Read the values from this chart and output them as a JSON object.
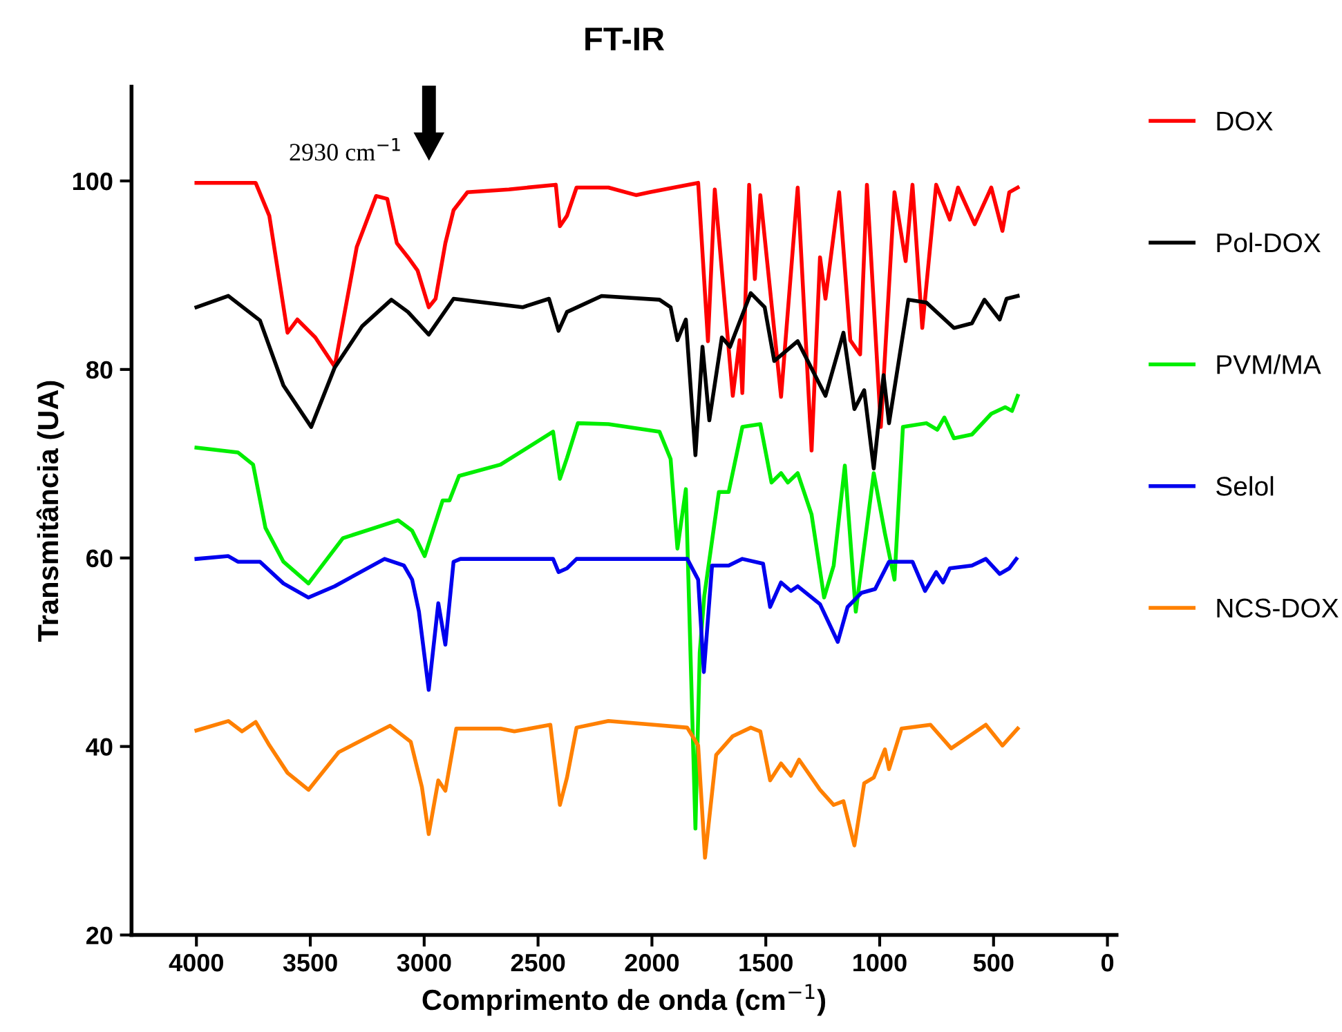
{
  "chart_data": {
    "type": "line",
    "title": "FT-IR",
    "xlabel": "Comprimento de onda (cm$^{−1}$)",
    "ylabel": "Transmitância (UA)",
    "annotations": [
      "2930 cm$^{−1}$"
    ],
    "xlim": [
      4285,
      -40
    ],
    "xticks": [
      4000,
      3500,
      3000,
      2500,
      2000,
      1500,
      1000,
      500,
      0
    ],
    "ylim": [
      20,
      110
    ],
    "yticks": [
      20,
      40,
      60,
      80,
      100
    ],
    "grid": false,
    "legend": "right",
    "marker": "none",
    "line_style": "solid",
    "series": [
      {
        "name": "DOX",
        "color": "#ff0000",
        "x": [
          4000,
          3740,
          3680,
          3600,
          3557,
          3478,
          3393,
          3296,
          3211,
          3162,
          3120,
          3071,
          3029,
          2980,
          2950,
          2907,
          2871,
          2810,
          2628,
          2422,
          2404,
          2373,
          2331,
          2191,
          2070,
          2010,
          1797,
          1754,
          1724,
          1645,
          1615,
          1603,
          1573,
          1548,
          1524,
          1433,
          1360,
          1299,
          1262,
          1238,
          1178,
          1129,
          1086,
          1056,
          995,
          935,
          886,
          856,
          813,
          752,
          692,
          656,
          583,
          510,
          461,
          431,
          394
        ],
        "values": [
          99.8,
          99.8,
          96.3,
          83.9,
          85.3,
          83.4,
          80.3,
          93,
          98.4,
          98.1,
          93.4,
          91.9,
          90.5,
          86.6,
          87.5,
          93.4,
          96.9,
          98.8,
          99.1,
          99.6,
          95.2,
          96.3,
          99.3,
          99.3,
          98.5,
          98.8,
          99.8,
          83,
          99.1,
          77.2,
          83.1,
          77.5,
          99.6,
          89.6,
          98.5,
          77.1,
          99.3,
          71.4,
          91.9,
          87.5,
          98.8,
          83.1,
          81.6,
          99.6,
          73.9,
          98.8,
          91.5,
          99.6,
          84.4,
          99.6,
          95.9,
          99.3,
          95.4,
          99.3,
          94.7,
          98.8,
          99.3
        ]
      },
      {
        "name": "Pol-DOX",
        "color": "#000000",
        "x": [
          4000,
          3860,
          3721,
          3618,
          3496,
          3393,
          3272,
          3144,
          3071,
          2980,
          2871,
          2568,
          2452,
          2410,
          2373,
          2221,
          1967,
          1918,
          1888,
          1851,
          1809,
          1778,
          1748,
          1693,
          1657,
          1566,
          1505,
          1463,
          1360,
          1238,
          1159,
          1111,
          1068,
          1026,
          983,
          959,
          874,
          795,
          674,
          595,
          540,
          473,
          443,
          394
        ],
        "values": [
          86.6,
          87.8,
          85.2,
          78.3,
          73.9,
          80.2,
          84.6,
          87.4,
          86.1,
          83.7,
          87.5,
          86.6,
          87.5,
          84.1,
          86.1,
          87.8,
          87.4,
          86.6,
          83.1,
          85.3,
          70.9,
          82.4,
          74.6,
          83.4,
          82.4,
          88.1,
          86.6,
          80.9,
          83,
          77.2,
          83.9,
          75.8,
          77.8,
          69.5,
          79.4,
          74.3,
          87.4,
          87.1,
          84.4,
          84.9,
          87.4,
          85.3,
          87.5,
          87.8
        ]
      },
      {
        "name": "PVM/MA",
        "color": "#00ee00",
        "x": [
          4000,
          3818,
          3751,
          3697,
          3618,
          3508,
          3357,
          3114,
          3053,
          2998,
          2919,
          2889,
          2847,
          2665,
          2434,
          2404,
          2373,
          2325,
          2191,
          1967,
          1918,
          1888,
          1851,
          1809,
          1790,
          1770,
          1706,
          1663,
          1603,
          1524,
          1475,
          1433,
          1403,
          1360,
          1299,
          1244,
          1202,
          1153,
          1105,
          1026,
          977,
          935,
          898,
          795,
          747,
          716,
          674,
          595,
          510,
          449,
          419,
          394
        ],
        "values": [
          71.7,
          71.2,
          69.9,
          63.2,
          59.6,
          57.3,
          62.1,
          64,
          62.9,
          60.2,
          66.1,
          66.1,
          68.7,
          69.9,
          73.4,
          68.4,
          70.6,
          74.3,
          74.2,
          73.4,
          70.5,
          61,
          67.3,
          31.3,
          50,
          56,
          67,
          67,
          73.9,
          74.2,
          68,
          69,
          68,
          69,
          64.6,
          55.8,
          59.2,
          69.8,
          54.3,
          69,
          62.6,
          57.7,
          73.9,
          74.3,
          73.6,
          74.9,
          72.7,
          73.1,
          75.3,
          76,
          75.6,
          77.2
        ]
      },
      {
        "name": "Selol",
        "color": "#0000ee",
        "x": [
          4000,
          3860,
          3818,
          3721,
          3618,
          3508,
          3393,
          3174,
          3089,
          3053,
          3023,
          2980,
          2938,
          2907,
          2871,
          2841,
          2434,
          2410,
          2373,
          2331,
          1845,
          1797,
          1772,
          1736,
          1663,
          1603,
          1512,
          1481,
          1433,
          1390,
          1360,
          1262,
          1184,
          1141,
          1080,
          1020,
          959,
          856,
          801,
          752,
          722,
          692,
          595,
          534,
          473,
          431,
          400
        ],
        "values": [
          59.9,
          60.2,
          59.6,
          59.6,
          57.3,
          55.8,
          57,
          59.9,
          59.2,
          57.7,
          54.3,
          46,
          55.2,
          50.8,
          59.6,
          59.9,
          59.9,
          58.5,
          58.9,
          59.9,
          59.9,
          57.7,
          47.9,
          59.2,
          59.2,
          59.9,
          59.4,
          54.8,
          57.4,
          56.5,
          57,
          55.1,
          51.1,
          54.8,
          56.3,
          56.7,
          59.6,
          59.6,
          56.5,
          58.5,
          57.4,
          58.9,
          59.2,
          59.9,
          58.3,
          58.9,
          59.9
        ]
      },
      {
        "name": "NCS-DOX",
        "color": "#ff8000",
        "x": [
          4000,
          3860,
          3800,
          3740,
          3679,
          3600,
          3508,
          3375,
          3150,
          3059,
          3010,
          2980,
          2938,
          2907,
          2859,
          2665,
          2604,
          2446,
          2404,
          2373,
          2331,
          2191,
          1991,
          1845,
          1797,
          1767,
          1718,
          1645,
          1566,
          1524,
          1481,
          1433,
          1390,
          1354,
          1262,
          1202,
          1159,
          1111,
          1068,
          1026,
          977,
          959,
          904,
          777,
          686,
          595,
          534,
          461,
          394
        ],
        "values": [
          41.7,
          42.7,
          41.6,
          42.6,
          40.1,
          37.2,
          35.4,
          39.4,
          42.2,
          40.5,
          35.7,
          30.7,
          36.4,
          35.3,
          41.9,
          41.9,
          41.6,
          42.3,
          33.8,
          36.7,
          42,
          42.7,
          42.3,
          42,
          40.1,
          28.2,
          39.1,
          41.1,
          42,
          41.6,
          36.4,
          38.2,
          36.9,
          38.6,
          35.4,
          33.8,
          34.2,
          29.5,
          36.1,
          36.7,
          39.7,
          37.6,
          41.9,
          42.3,
          39.8,
          41.3,
          42.3,
          40.1,
          41.9
        ]
      }
    ]
  }
}
